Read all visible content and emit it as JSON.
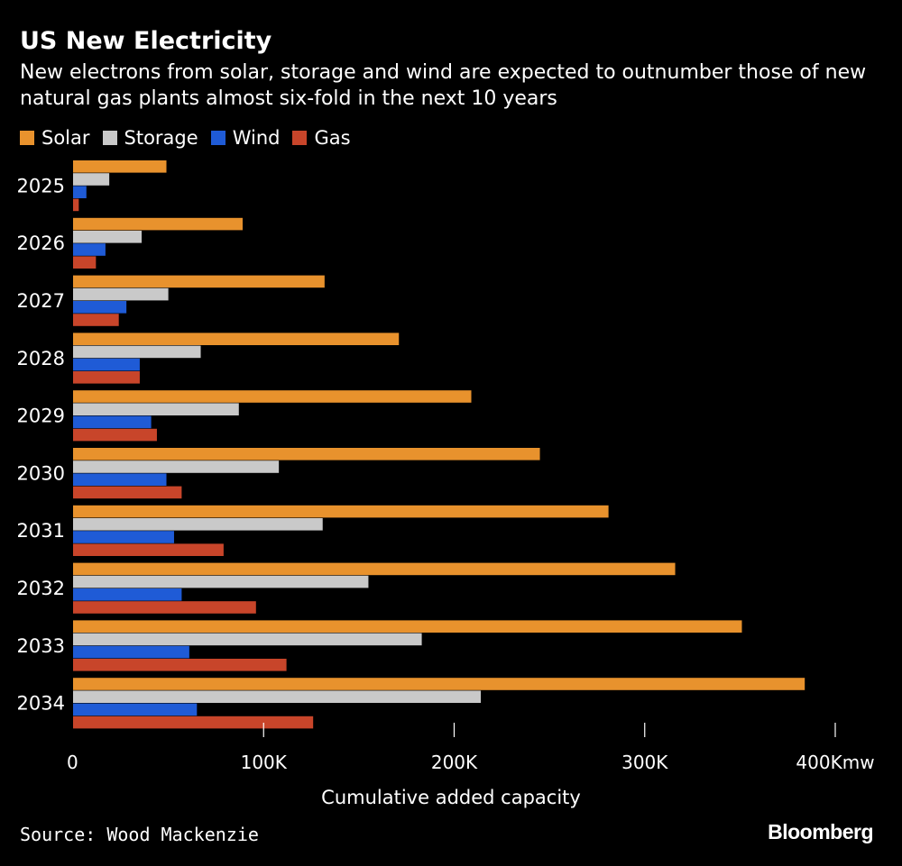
{
  "title": "US New Electricity",
  "subtitle": "New electrons from solar, storage and wind are expected to outnumber those of new natural gas plants almost six-fold in the next 10 years",
  "source": "Source: Wood Mackenzie",
  "logo": "Bloomberg",
  "chart_data": {
    "type": "bar",
    "orientation": "horizontal",
    "categories": [
      "2025",
      "2026",
      "2027",
      "2028",
      "2029",
      "2030",
      "2031",
      "2032",
      "2033",
      "2034"
    ],
    "series": [
      {
        "name": "Solar",
        "color": "#E8922D",
        "values": [
          49,
          89,
          132,
          171,
          209,
          245,
          281,
          316,
          351,
          384
        ]
      },
      {
        "name": "Storage",
        "color": "#C9C9C9",
        "values": [
          19,
          36,
          50,
          67,
          87,
          108,
          131,
          155,
          183,
          214
        ]
      },
      {
        "name": "Wind",
        "color": "#1F5BD6",
        "values": [
          7,
          17,
          28,
          35,
          41,
          49,
          53,
          57,
          61,
          65
        ]
      },
      {
        "name": "Gas",
        "color": "#C8452A",
        "values": [
          3,
          12,
          24,
          35,
          44,
          57,
          79,
          96,
          112,
          126
        ]
      }
    ],
    "xlabel": "Cumulative added capacity",
    "xlim": [
      0,
      400
    ],
    "xticks": [
      0,
      100,
      200,
      300,
      400
    ],
    "xtick_labels": [
      "0",
      "100K",
      "200K",
      "300K",
      "400Kmw"
    ],
    "legend_position": "top-left",
    "grid": false
  }
}
